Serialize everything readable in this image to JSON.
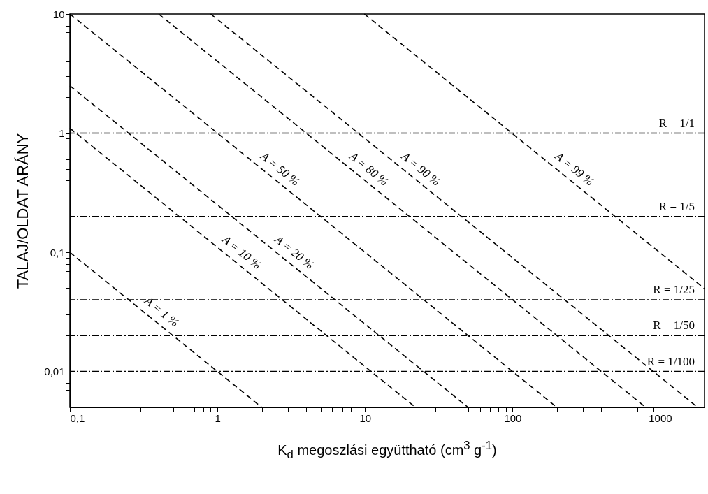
{
  "chart_data": {
    "type": "line",
    "xlabel": "K$_{d}$ megoszlási együttható (cm$^{3}$ g$^{-1}$)",
    "ylabel": "TALAJ/OLDAT ARÁNY",
    "log": "xy",
    "line_style": "dashed",
    "xlim": [
      0.1,
      2000
    ],
    "ylim": [
      0.005,
      10
    ],
    "xticks": [
      {
        "value": 0.1,
        "label": "0,1"
      },
      {
        "value": 0.2,
        "label": null
      },
      {
        "value": 0.3,
        "label": null
      },
      {
        "value": 0.4,
        "label": null
      },
      {
        "value": 0.5,
        "label": null
      },
      {
        "value": 0.6,
        "label": null
      },
      {
        "value": 0.7,
        "label": null
      },
      {
        "value": 0.8,
        "label": null
      },
      {
        "value": 0.9,
        "label": null
      },
      1,
      {
        "value": 2,
        "label": null
      },
      {
        "value": 3,
        "label": null
      },
      {
        "value": 4,
        "label": null
      },
      {
        "value": 5,
        "label": null
      },
      {
        "value": 6,
        "label": null
      },
      {
        "value": 7,
        "label": null
      },
      {
        "value": 8,
        "label": null
      },
      {
        "value": 9,
        "label": null
      },
      10,
      {
        "value": 20,
        "label": null
      },
      {
        "value": 30,
        "label": null
      },
      {
        "value": 40,
        "label": null
      },
      {
        "value": 50,
        "label": null
      },
      {
        "value": 60,
        "label": null
      },
      {
        "value": 70,
        "label": null
      },
      {
        "value": 80,
        "label": null
      },
      {
        "value": 90,
        "label": null
      },
      100,
      {
        "value": 200,
        "label": null
      },
      {
        "value": 300,
        "label": null
      },
      {
        "value": 400,
        "label": null
      },
      {
        "value": 500,
        "label": null
      },
      {
        "value": 600,
        "label": null
      },
      {
        "value": 700,
        "label": null
      },
      {
        "value": 800,
        "label": null
      },
      {
        "value": 900,
        "label": null
      },
      1000
    ],
    "yticks": [
      {
        "value": 0.006,
        "label": null
      },
      {
        "value": 0.007,
        "label": null
      },
      {
        "value": 0.008,
        "label": null
      },
      {
        "value": 0.009,
        "label": null
      },
      {
        "value": 0.01,
        "label": "0,01"
      },
      {
        "value": 0.02,
        "label": null
      },
      {
        "value": 0.03,
        "label": null
      },
      {
        "value": 0.04,
        "label": null
      },
      {
        "value": 0.05,
        "label": null
      },
      {
        "value": 0.06,
        "label": null
      },
      {
        "value": 0.07,
        "label": null
      },
      {
        "value": 0.08,
        "label": null
      },
      {
        "value": 0.09,
        "label": null
      },
      {
        "value": 0.1,
        "label": "0,1"
      },
      {
        "value": 0.2,
        "label": null
      },
      {
        "value": 0.3,
        "label": null
      },
      {
        "value": 0.4,
        "label": null
      },
      {
        "value": 0.5,
        "label": null
      },
      {
        "value": 0.6,
        "label": null
      },
      {
        "value": 0.7,
        "label": null
      },
      {
        "value": 0.8,
        "label": null
      },
      {
        "value": 0.9,
        "label": null
      },
      1,
      {
        "value": 2,
        "label": null
      },
      {
        "value": 3,
        "label": null
      },
      {
        "value": 4,
        "label": null
      },
      {
        "value": 5,
        "label": null
      },
      {
        "value": 6,
        "label": null
      },
      {
        "value": 7,
        "label": null
      },
      {
        "value": 8,
        "label": null
      },
      {
        "value": 9,
        "label": null
      },
      10
    ],
    "series": [
      {
        "name": "A = 1 %",
        "color": "#000000",
        "x": [
          0.1,
          2
        ],
        "values": [
          0.1,
          0.005
        ]
      },
      {
        "name": "A = 10 %",
        "color": "#000000",
        "x": [
          0.1,
          22
        ],
        "values": [
          1.1,
          0.005
        ]
      },
      {
        "name": "A = 20 %",
        "color": "#000000",
        "x": [
          0.1,
          50
        ],
        "values": [
          2.5,
          0.005
        ]
      },
      {
        "name": "A = 50 %",
        "color": "#000000",
        "x": [
          0.1,
          200
        ],
        "values": [
          10,
          0.005
        ]
      },
      {
        "name": "A = 80 %",
        "color": "#000000",
        "x": [
          0.4,
          800
        ],
        "values": [
          10,
          0.005
        ]
      },
      {
        "name": "A = 90 %",
        "color": "#000000",
        "x": [
          0.9,
          1800
        ],
        "values": [
          10,
          0.005
        ]
      },
      {
        "name": "A = 99 %",
        "color": "#000000",
        "x": [
          9.9,
          2000
        ],
        "values": [
          10,
          0.0495
        ]
      }
    ],
    "ref_lines": [
      {
        "axis": "y",
        "value": 1
      },
      {
        "axis": "y",
        "value": 0.2
      },
      {
        "axis": "y",
        "value": 0.04
      },
      {
        "axis": "y",
        "value": 0.02
      },
      {
        "axis": "y",
        "value": 0.01
      }
    ],
    "annotations": [
      {
        "text": "R = 1/1",
        "y": 1
      },
      {
        "text": "R = 1/5",
        "y": 0.2
      },
      {
        "text": "R = 1/25",
        "y": 0.04
      },
      {
        "text": "R = 1/50",
        "y": 0.02
      },
      {
        "text": "R = 1/100",
        "y": 0.01
      }
    ]
  }
}
